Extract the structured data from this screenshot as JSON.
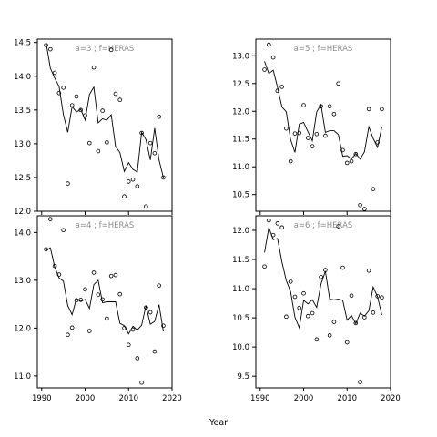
{
  "xlabel": "Year",
  "chart_data": [
    {
      "type": "scatter",
      "title": "a=3 ; f=HERAS",
      "xlim": [
        1989,
        2020
      ],
      "ylim": [
        12.0,
        14.55
      ],
      "xticks": [
        1990,
        2000,
        2010,
        2020
      ],
      "yticks": [
        12.0,
        12.5,
        13.0,
        13.5,
        14.0,
        14.5
      ],
      "yticklabels": [
        "12.0",
        "12.5",
        "13.0",
        "13.5",
        "14.0",
        "14.5"
      ],
      "points": [
        [
          1991,
          14.46
        ],
        [
          1992,
          14.4
        ],
        [
          1993,
          14.05
        ],
        [
          1994,
          13.75
        ],
        [
          1995,
          13.83
        ],
        [
          1996,
          12.41
        ],
        [
          1997,
          13.57
        ],
        [
          1998,
          13.7
        ],
        [
          1999,
          13.5
        ],
        [
          2000,
          13.42
        ],
        [
          2001,
          13.01
        ],
        [
          2002,
          14.13
        ],
        [
          2003,
          12.89
        ],
        [
          2004,
          13.49
        ],
        [
          2005,
          13.02
        ],
        [
          2006,
          14.39
        ],
        [
          2007,
          13.74
        ],
        [
          2008,
          13.65
        ],
        [
          2009,
          12.22
        ],
        [
          2010,
          12.44
        ],
        [
          2011,
          12.47
        ],
        [
          2012,
          12.37
        ],
        [
          2013,
          13.16
        ],
        [
          2014,
          12.07
        ],
        [
          2015,
          13.01
        ],
        [
          2016,
          12.86
        ],
        [
          2017,
          13.4
        ],
        [
          2018,
          12.5
        ]
      ],
      "line": [
        [
          1991,
          14.5
        ],
        [
          1992,
          14.12
        ],
        [
          1993,
          13.97
        ],
        [
          1994,
          13.85
        ],
        [
          1995,
          13.43
        ],
        [
          1996,
          13.17
        ],
        [
          1997,
          13.55
        ],
        [
          1998,
          13.47
        ],
        [
          1999,
          13.51
        ],
        [
          2000,
          13.35
        ],
        [
          2001,
          13.73
        ],
        [
          2002,
          13.84
        ],
        [
          2003,
          13.31
        ],
        [
          2004,
          13.37
        ],
        [
          2005,
          13.35
        ],
        [
          2006,
          13.43
        ],
        [
          2007,
          12.96
        ],
        [
          2008,
          12.87
        ],
        [
          2009,
          12.59
        ],
        [
          2010,
          12.72
        ],
        [
          2011,
          12.62
        ],
        [
          2012,
          12.58
        ],
        [
          2013,
          13.17
        ],
        [
          2014,
          13.06
        ],
        [
          2015,
          12.76
        ],
        [
          2016,
          13.23
        ],
        [
          2017,
          12.76
        ],
        [
          2018,
          12.5
        ]
      ]
    },
    {
      "type": "scatter",
      "title": "a=5 ; f=HERAS",
      "xlim": [
        1989,
        2020
      ],
      "ylim": [
        10.2,
        13.3
      ],
      "xticks": [
        1990,
        2000,
        2010,
        2020
      ],
      "yticks": [
        10.5,
        11.0,
        11.5,
        12.0,
        12.5,
        13.0
      ],
      "yticklabels": [
        "10.5",
        "11.0",
        "11.5",
        "12.0",
        "12.5",
        "13.0"
      ],
      "points": [
        [
          1991,
          12.75
        ],
        [
          1992,
          13.2
        ],
        [
          1993,
          12.97
        ],
        [
          1994,
          12.37
        ],
        [
          1995,
          12.44
        ],
        [
          1996,
          11.69
        ],
        [
          1997,
          11.1
        ],
        [
          1998,
          11.6
        ],
        [
          1999,
          11.61
        ],
        [
          2000,
          12.11
        ],
        [
          2001,
          11.52
        ],
        [
          2002,
          11.37
        ],
        [
          2003,
          11.59
        ],
        [
          2004,
          12.09
        ],
        [
          2005,
          11.56
        ],
        [
          2006,
          12.09
        ],
        [
          2007,
          11.95
        ],
        [
          2008,
          12.5
        ],
        [
          2009,
          11.3
        ],
        [
          2010,
          11.07
        ],
        [
          2011,
          11.1
        ],
        [
          2012,
          11.23
        ],
        [
          2013,
          10.31
        ],
        [
          2014,
          10.24
        ],
        [
          2015,
          12.04
        ],
        [
          2016,
          10.6
        ],
        [
          2017,
          11.44
        ],
        [
          2018,
          12.04
        ]
      ],
      "line": [
        [
          1991,
          12.9
        ],
        [
          1992,
          12.68
        ],
        [
          1993,
          12.74
        ],
        [
          1994,
          12.43
        ],
        [
          1995,
          12.08
        ],
        [
          1996,
          11.99
        ],
        [
          1997,
          11.49
        ],
        [
          1998,
          11.26
        ],
        [
          1999,
          11.77
        ],
        [
          2000,
          11.8
        ],
        [
          2001,
          11.63
        ],
        [
          2002,
          11.47
        ],
        [
          2003,
          11.99
        ],
        [
          2004,
          12.12
        ],
        [
          2005,
          11.62
        ],
        [
          2006,
          11.65
        ],
        [
          2007,
          11.65
        ],
        [
          2008,
          11.58
        ],
        [
          2009,
          11.19
        ],
        [
          2010,
          11.2
        ],
        [
          2011,
          11.14
        ],
        [
          2012,
          11.24
        ],
        [
          2013,
          11.14
        ],
        [
          2014,
          11.27
        ],
        [
          2015,
          11.72
        ],
        [
          2016,
          11.51
        ],
        [
          2017,
          11.35
        ],
        [
          2018,
          11.72
        ]
      ]
    },
    {
      "type": "scatter",
      "title": "a=4 ; f=HERAS",
      "xlim": [
        1989,
        2020
      ],
      "ylim": [
        10.75,
        14.35
      ],
      "xticks": [
        1990,
        2000,
        2010,
        2020
      ],
      "yticks": [
        11.0,
        12.0,
        13.0,
        14.0
      ],
      "yticklabels": [
        "11.0",
        "12.0",
        "13.0",
        "14.0"
      ],
      "points": [
        [
          1991,
          13.65
        ],
        [
          1992,
          14.28
        ],
        [
          1993,
          13.3
        ],
        [
          1994,
          13.12
        ],
        [
          1995,
          14.05
        ],
        [
          1996,
          11.86
        ],
        [
          1997,
          12.01
        ],
        [
          1998,
          12.58
        ],
        [
          1999,
          12.59
        ],
        [
          2000,
          12.81
        ],
        [
          2001,
          11.94
        ],
        [
          2002,
          13.16
        ],
        [
          2003,
          12.7
        ],
        [
          2004,
          12.6
        ],
        [
          2005,
          12.2
        ],
        [
          2006,
          13.09
        ],
        [
          2007,
          13.11
        ],
        [
          2008,
          12.71
        ],
        [
          2009,
          12.0
        ],
        [
          2010,
          11.65
        ],
        [
          2011,
          11.97
        ],
        [
          2012,
          11.37
        ],
        [
          2013,
          10.86
        ],
        [
          2014,
          12.43
        ],
        [
          2015,
          12.33
        ],
        [
          2016,
          11.51
        ],
        [
          2017,
          12.89
        ],
        [
          2018,
          12.05
        ]
      ],
      "line": [
        [
          1991,
          13.62
        ],
        [
          1992,
          13.68
        ],
        [
          1993,
          13.28
        ],
        [
          1994,
          13.05
        ],
        [
          1995,
          12.98
        ],
        [
          1996,
          12.47
        ],
        [
          1997,
          12.28
        ],
        [
          1998,
          12.62
        ],
        [
          1999,
          12.56
        ],
        [
          2000,
          12.6
        ],
        [
          2001,
          12.41
        ],
        [
          2002,
          12.91
        ],
        [
          2003,
          13.0
        ],
        [
          2004,
          12.53
        ],
        [
          2005,
          12.55
        ],
        [
          2006,
          12.55
        ],
        [
          2007,
          12.55
        ],
        [
          2008,
          12.1
        ],
        [
          2009,
          12.05
        ],
        [
          2010,
          11.88
        ],
        [
          2011,
          12.04
        ],
        [
          2012,
          11.96
        ],
        [
          2013,
          12.06
        ],
        [
          2014,
          12.47
        ],
        [
          2015,
          12.08
        ],
        [
          2016,
          12.14
        ],
        [
          2017,
          12.49
        ],
        [
          2018,
          11.93
        ]
      ]
    },
    {
      "type": "scatter",
      "title": "a=6 ; f=HERAS",
      "xlim": [
        1989,
        2020
      ],
      "ylim": [
        9.3,
        12.25
      ],
      "xticks": [
        1990,
        2000,
        2010,
        2020
      ],
      "yticks": [
        9.5,
        10.0,
        10.5,
        11.0,
        11.5,
        12.0
      ],
      "yticklabels": [
        "9.5",
        "10.0",
        "10.5",
        "11.0",
        "11.5",
        "12.0"
      ],
      "points": [
        [
          1991,
          11.38
        ],
        [
          1992,
          12.17
        ],
        [
          1993,
          11.92
        ],
        [
          1994,
          12.12
        ],
        [
          1995,
          12.05
        ],
        [
          1996,
          10.52
        ],
        [
          1997,
          11.12
        ],
        [
          1998,
          10.86
        ],
        [
          1999,
          10.67
        ],
        [
          2000,
          10.92
        ],
        [
          2001,
          10.53
        ],
        [
          2002,
          10.58
        ],
        [
          2003,
          10.13
        ],
        [
          2004,
          11.2
        ],
        [
          2005,
          11.32
        ],
        [
          2006,
          10.2
        ],
        [
          2007,
          10.43
        ],
        [
          2008,
          12.07
        ],
        [
          2009,
          11.36
        ],
        [
          2010,
          10.08
        ],
        [
          2011,
          10.88
        ],
        [
          2012,
          10.41
        ],
        [
          2013,
          9.4
        ],
        [
          2014,
          10.51
        ],
        [
          2015,
          11.31
        ],
        [
          2016,
          10.59
        ],
        [
          2017,
          10.87
        ],
        [
          2018,
          10.85
        ]
      ],
      "line": [
        [
          1991,
          11.62
        ],
        [
          1992,
          12.05
        ],
        [
          1993,
          11.84
        ],
        [
          1994,
          11.86
        ],
        [
          1995,
          11.46
        ],
        [
          1996,
          11.14
        ],
        [
          1997,
          10.95
        ],
        [
          1998,
          10.51
        ],
        [
          1999,
          10.33
        ],
        [
          2000,
          10.8
        ],
        [
          2001,
          10.74
        ],
        [
          2002,
          10.81
        ],
        [
          2003,
          10.68
        ],
        [
          2004,
          11.08
        ],
        [
          2005,
          11.3
        ],
        [
          2006,
          10.82
        ],
        [
          2007,
          10.81
        ],
        [
          2008,
          10.82
        ],
        [
          2009,
          10.8
        ],
        [
          2010,
          10.46
        ],
        [
          2011,
          10.54
        ],
        [
          2012,
          10.4
        ],
        [
          2013,
          10.58
        ],
        [
          2014,
          10.53
        ],
        [
          2015,
          10.62
        ],
        [
          2016,
          11.03
        ],
        [
          2017,
          10.86
        ],
        [
          2018,
          10.55
        ]
      ]
    }
  ]
}
